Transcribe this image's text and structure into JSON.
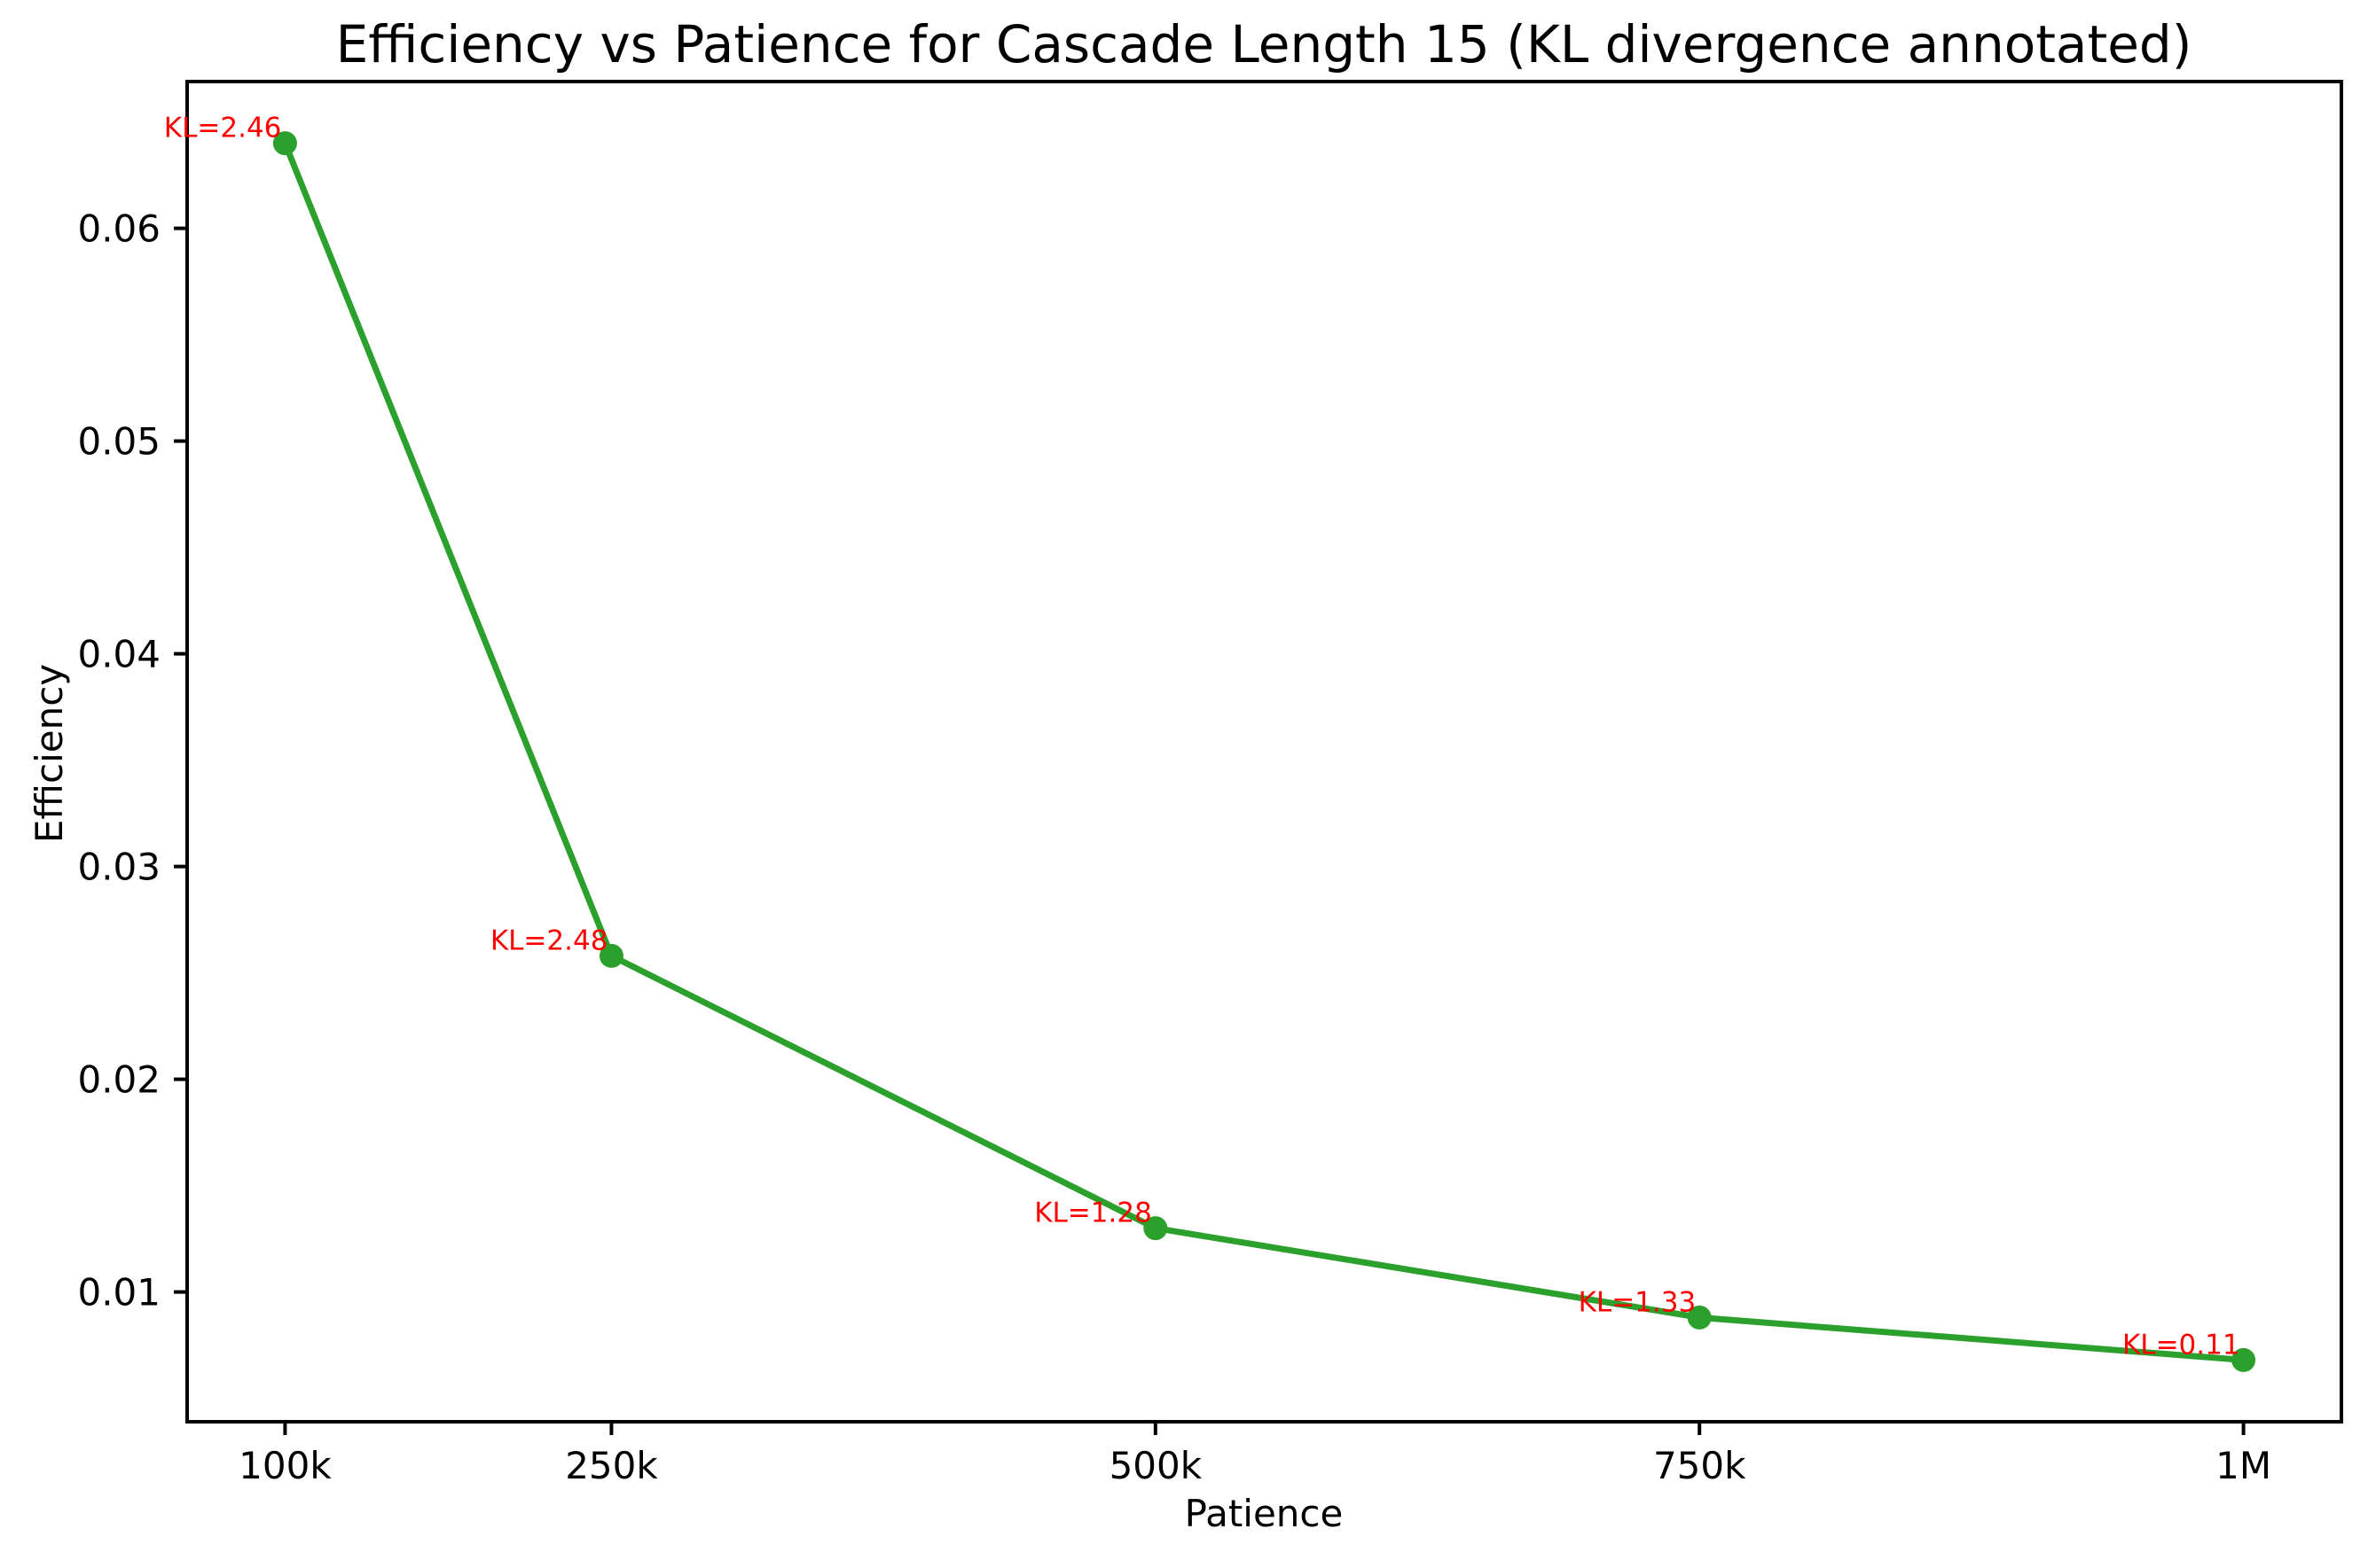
{
  "chart_data": {
    "type": "line",
    "title": "Efficiency vs Patience for Cascade Length 15 (KL divergence annotated)",
    "xlabel": "Patience",
    "ylabel": "Efficiency",
    "x": [
      100000,
      250000,
      500000,
      750000,
      1000000
    ],
    "x_tick_labels": [
      "100k",
      "250k",
      "500k",
      "750k",
      "1M"
    ],
    "series": [
      {
        "name": "efficiency",
        "values": [
          0.064,
          0.0258,
          0.013,
          0.0088,
          0.0068
        ]
      }
    ],
    "kl_annotations": [
      "KL=2.46",
      "KL=2.48",
      "KL=1.28",
      "KL=1.33",
      "KL=0.11"
    ],
    "y_ticks": [
      0.01,
      0.02,
      0.03,
      0.04,
      0.05,
      0.06
    ],
    "y_tick_labels": [
      "0.01",
      "0.02",
      "0.03",
      "0.04",
      "0.05",
      "0.06"
    ],
    "xlim": [
      55000,
      1045000
    ],
    "ylim": [
      0.0039,
      0.0669
    ],
    "grid": false,
    "legend": "none",
    "line_color": "#2ca02c",
    "marker_color": "#2ca02c",
    "annotation_color": "#ff0000",
    "spine_color": "#000000",
    "background_color": "#ffffff",
    "marker": "circle"
  }
}
